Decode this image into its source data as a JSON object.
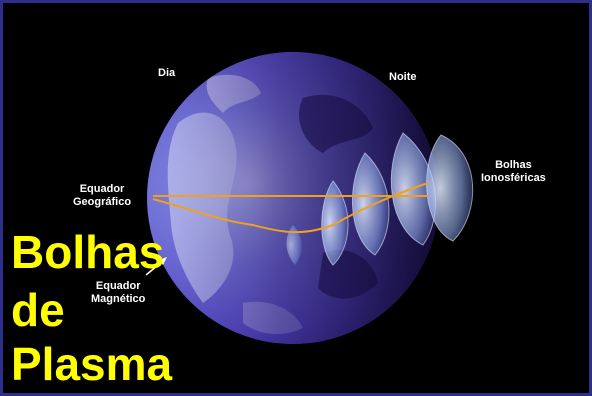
{
  "labels": {
    "day": "Dia",
    "night": "Noite",
    "geo_equator_line1": "Equador",
    "geo_equator_line2": "Geográfico",
    "mag_equator_line1": "Equador",
    "mag_equator_line2": "Magnético",
    "bubbles_line1": "Bolhas",
    "bubbles_line2": "Ionosféricas"
  },
  "title": {
    "line1": "Bolhas",
    "line2": "de",
    "line3": "Plasma"
  },
  "colors": {
    "background": "#000000",
    "border": "#2e2e8c",
    "title": "#ffff00",
    "label": "#ffffff",
    "equator_line": "#f0a020",
    "globe_day": "#6d6fd6",
    "globe_night": "#1a1040",
    "bubble": "#c8d8ff"
  }
}
